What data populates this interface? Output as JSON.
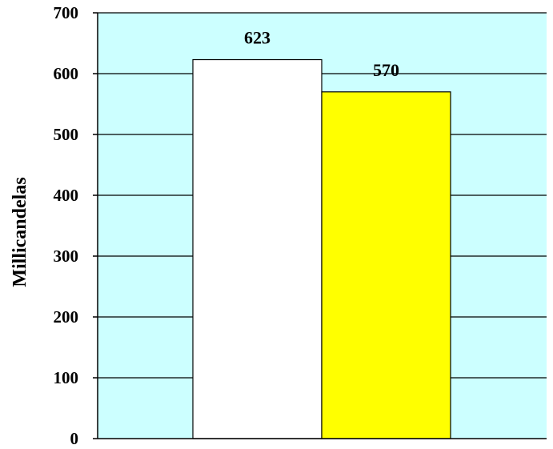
{
  "chart_data": {
    "type": "bar",
    "categories": [
      "",
      ""
    ],
    "values": [
      623,
      570
    ],
    "data_labels": [
      "623",
      "570"
    ],
    "colors": [
      "#ffffff",
      "#ffff00"
    ],
    "ylabel": "Millicandelas",
    "ylim": [
      0,
      700
    ],
    "yticks": [
      0,
      100,
      200,
      300,
      400,
      500,
      600,
      700
    ],
    "ytick_labels": [
      "0",
      "100",
      "200",
      "300",
      "400",
      "500",
      "600",
      "700"
    ],
    "grid": true,
    "plot_background": "#ccffff",
    "legend": "none"
  }
}
